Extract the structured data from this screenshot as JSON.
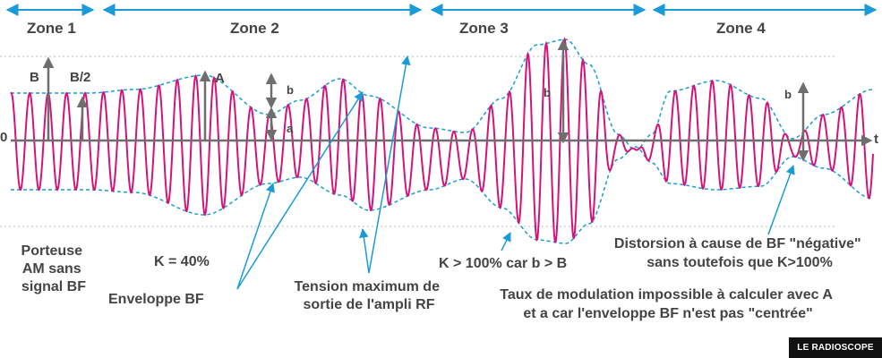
{
  "colors": {
    "signal": "#d2147a",
    "envelope": "#1a9bd8",
    "arrow": "#1a9bd8",
    "axis": "#6e6e6e",
    "text": "#444444",
    "reference": "#bbbbbb"
  },
  "zones": [
    {
      "label": "Zone 1"
    },
    {
      "label": "Zone 2"
    },
    {
      "label": "Zone 3"
    },
    {
      "label": "Zone 4"
    }
  ],
  "axis": {
    "origin_label": "0",
    "time_label": "t"
  },
  "markers": {
    "B": "B",
    "B_half": "B/2",
    "A": "A",
    "b_zone2": "b",
    "a_zone2": "a",
    "b_zone3": "b",
    "b_zone4": "b"
  },
  "annotations": {
    "carrier": [
      "Porteuse",
      "AM sans",
      "signal BF"
    ],
    "k40": "K = 40%",
    "envelope": "Enveloppe BF",
    "max_voltage": [
      "Tension maximum de",
      "sortie de l'ampli RF"
    ],
    "k100": "K > 100% car b > B",
    "distortion": [
      "Distorsion à cause de BF \"négative\"",
      "sans toutefois que K>100%"
    ],
    "impossible": [
      "Taux de modulation impossible à calculer avec A",
      "et a car l'enveloppe BF n'est pas \"centrée\""
    ]
  },
  "logo": "LE RADIOSCOPE"
}
